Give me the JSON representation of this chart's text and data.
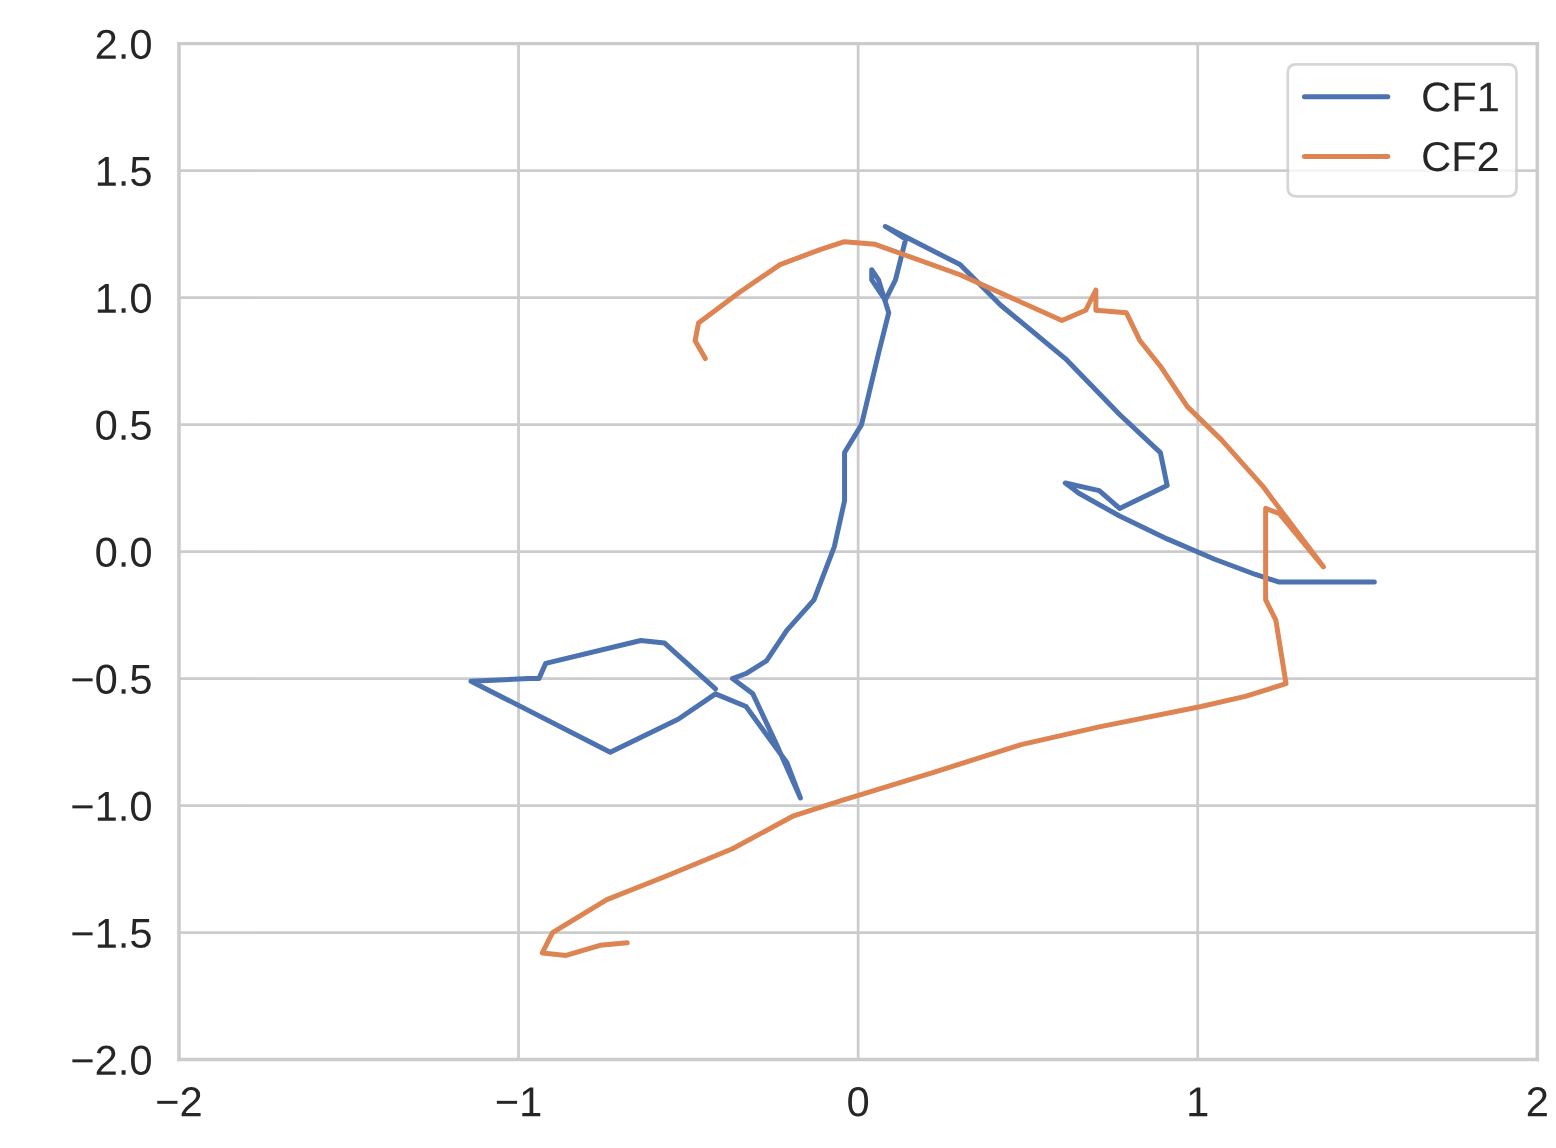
{
  "chart_data": {
    "type": "line",
    "xlim": [
      -2,
      2
    ],
    "ylim": [
      -2,
      2
    ],
    "xticks": [
      {
        "value": -2,
        "label": "−2"
      },
      {
        "value": -1,
        "label": "−1"
      },
      0,
      1,
      2
    ],
    "yticks": [
      {
        "value": -2.0,
        "label": "−2.0"
      },
      {
        "value": -1.5,
        "label": "−1.5"
      },
      {
        "value": -1.0,
        "label": "−1.0"
      },
      {
        "value": -0.5,
        "label": "−0.5"
      },
      {
        "value": 0.0,
        "label": "0.0"
      },
      {
        "value": 0.5,
        "label": "0.5"
      },
      {
        "value": 1.0,
        "label": "1.0"
      },
      {
        "value": 1.5,
        "label": "1.5"
      },
      {
        "value": 2.0,
        "label": "2.0"
      }
    ],
    "grid": true,
    "legend": "top right",
    "marker": "none",
    "line_style": "solid",
    "series": [
      {
        "name": "CF1",
        "color": "#4c72b0",
        "x": [
          1.52,
          1.4,
          1.24,
          1.17,
          1.05,
          0.91,
          0.77,
          0.65,
          0.61,
          0.71,
          0.77,
          0.91,
          0.89,
          0.77,
          0.61,
          0.42,
          0.3,
          0.08,
          0.14,
          0.11,
          0.08,
          0.04,
          0.04,
          0.06,
          0.09,
          0.06,
          0.01,
          -0.04,
          -0.04,
          -0.07,
          -0.13,
          -0.21,
          -0.27,
          -0.33,
          -0.37,
          -0.31,
          -0.24,
          -0.17,
          -0.21,
          -0.33,
          -0.42,
          -0.53,
          -0.73,
          -1.14,
          -0.97,
          -0.94,
          -0.92,
          -0.64,
          -0.57,
          -0.42
        ],
        "values": [
          -0.12,
          -0.12,
          -0.12,
          -0.09,
          -0.03,
          0.05,
          0.14,
          0.23,
          0.27,
          0.24,
          0.17,
          0.26,
          0.39,
          0.54,
          0.76,
          0.97,
          1.13,
          1.28,
          1.23,
          1.07,
          0.99,
          1.07,
          1.11,
          1.07,
          0.94,
          0.78,
          0.5,
          0.39,
          0.2,
          0.02,
          -0.19,
          -0.31,
          -0.43,
          -0.48,
          -0.5,
          -0.56,
          -0.76,
          -0.97,
          -0.83,
          -0.61,
          -0.56,
          -0.66,
          -0.79,
          -0.51,
          -0.5,
          -0.5,
          -0.44,
          -0.35,
          -0.36,
          -0.54
        ]
      },
      {
        "name": "CF2",
        "color": "#dd8452",
        "x": [
          -0.45,
          -0.48,
          -0.47,
          -0.35,
          -0.23,
          -0.11,
          -0.04,
          0.05,
          0.3,
          0.6,
          0.67,
          0.7,
          0.7,
          0.79,
          0.83,
          0.89,
          0.97,
          1.07,
          1.19,
          1.37,
          1.24,
          1.2,
          1.2,
          1.2,
          1.23,
          1.26,
          1.14,
          1.01,
          0.71,
          0.48,
          0.22,
          -0.05,
          -0.19,
          -0.37,
          -0.57,
          -0.74,
          -0.9,
          -0.93,
          -0.86,
          -0.76,
          -0.68
        ],
        "values": [
          0.76,
          0.83,
          0.9,
          1.02,
          1.13,
          1.19,
          1.22,
          1.21,
          1.09,
          0.91,
          0.95,
          1.03,
          0.95,
          0.94,
          0.83,
          0.73,
          0.57,
          0.44,
          0.26,
          -0.06,
          0.15,
          0.17,
          0.05,
          -0.19,
          -0.27,
          -0.52,
          -0.57,
          -0.61,
          -0.69,
          -0.76,
          -0.87,
          -0.98,
          -1.04,
          -1.17,
          -1.28,
          -1.37,
          -1.5,
          -1.58,
          -1.59,
          -1.55,
          -1.54
        ]
      }
    ]
  }
}
